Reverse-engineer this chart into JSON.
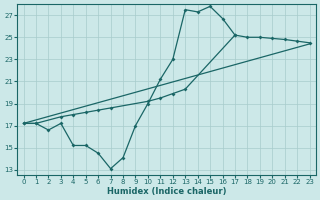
{
  "xlabel": "Humidex (Indice chaleur)",
  "xlim": [
    -0.5,
    23.5
  ],
  "ylim": [
    12.5,
    28.0
  ],
  "xticks": [
    0,
    1,
    2,
    3,
    4,
    5,
    6,
    7,
    8,
    9,
    10,
    11,
    12,
    13,
    14,
    15,
    16,
    17,
    18,
    19,
    20,
    21,
    22,
    23
  ],
  "yticks": [
    13,
    15,
    17,
    19,
    21,
    23,
    25,
    27
  ],
  "bg_color": "#cce8e8",
  "grid_color": "#a8cccc",
  "line_color": "#1a6666",
  "line1_x": [
    0,
    1,
    2,
    3,
    4,
    5,
    6,
    7,
    8,
    9,
    10,
    11,
    12,
    13,
    14,
    15,
    16,
    17
  ],
  "line1_y": [
    17.2,
    17.2,
    16.6,
    17.2,
    15.2,
    15.2,
    14.5,
    13.1,
    14.1,
    17.0,
    19.0,
    21.2,
    23.0,
    27.5,
    27.3,
    27.8,
    26.7,
    25.2
  ],
  "line2_x": [
    0,
    1,
    3,
    4,
    5,
    6,
    7,
    10,
    11,
    12,
    13,
    17,
    18,
    19,
    20,
    21,
    22,
    23
  ],
  "line2_y": [
    17.2,
    17.2,
    17.8,
    18.0,
    18.2,
    18.4,
    18.6,
    19.2,
    19.5,
    19.9,
    20.3,
    25.2,
    25.0,
    25.0,
    24.9,
    24.8,
    24.65,
    24.5
  ],
  "line3_x": [
    0,
    23
  ],
  "line3_y": [
    17.2,
    24.4
  ]
}
